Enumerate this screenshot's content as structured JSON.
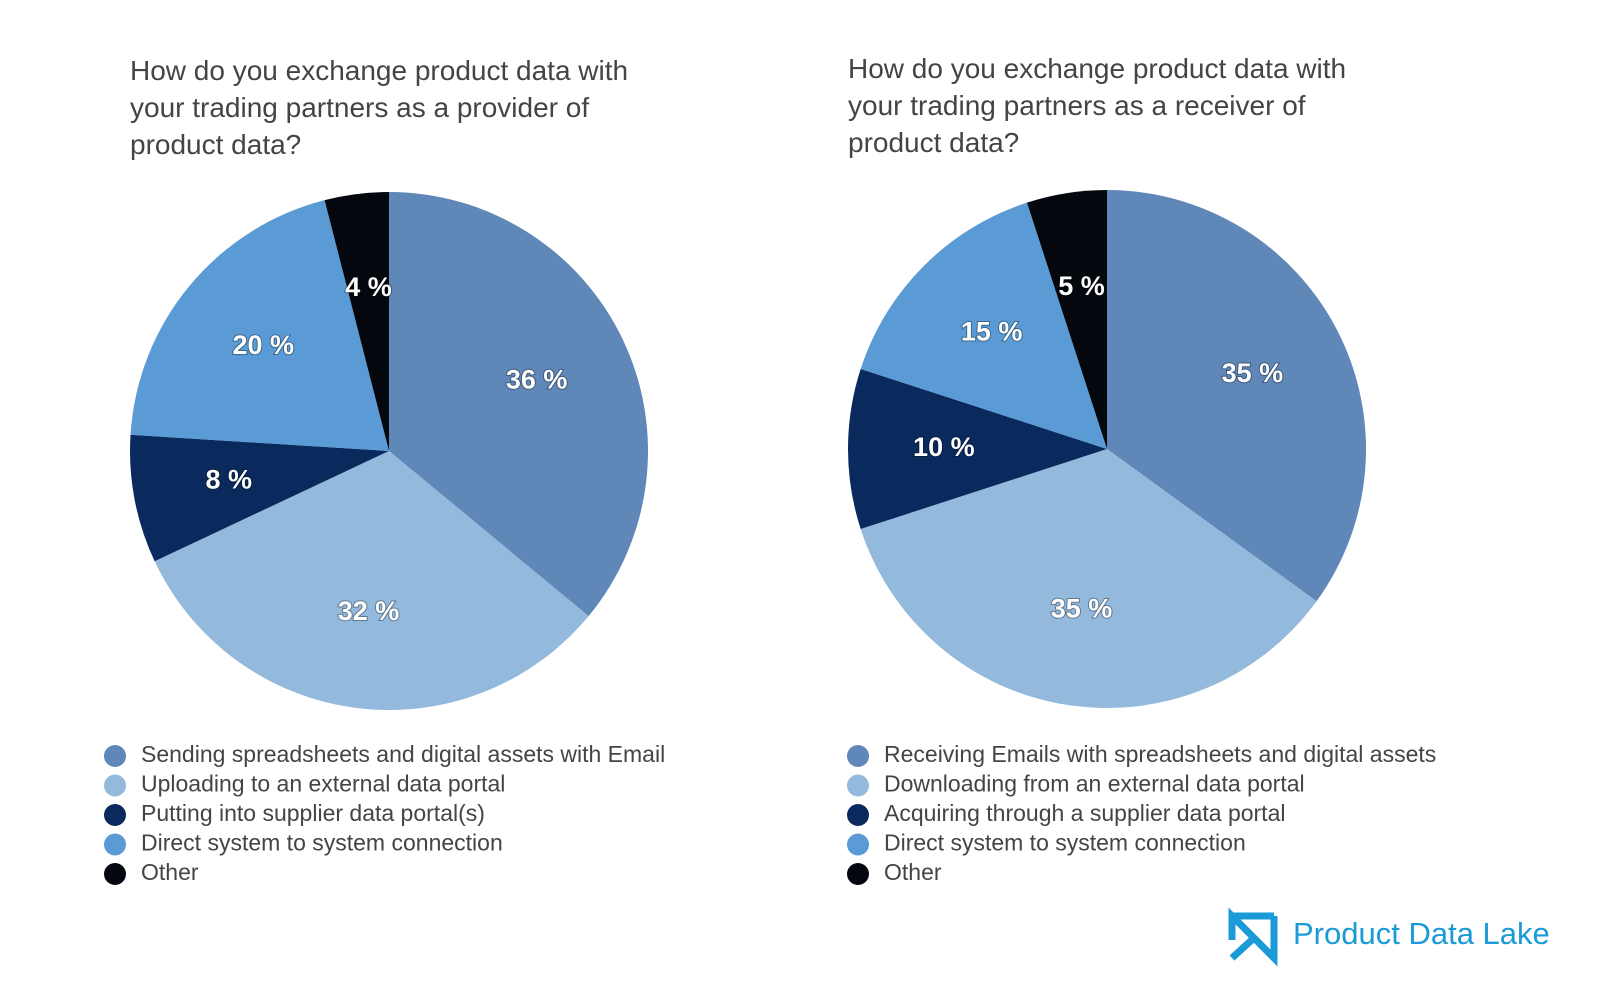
{
  "chart_data": [
    {
      "type": "pie",
      "title": "How do you exchange product data with your trading partners as a provider of product data?",
      "categories": [
        "Sending spreadsheets and digital assets with Email",
        "Uploading to an external data portal",
        "Putting into supplier data portal(s)",
        "Direct system to system connection",
        "Other"
      ],
      "values": [
        36,
        32,
        8,
        20,
        4
      ],
      "value_labels": [
        "36 %",
        "32 %",
        "8 %",
        "20 %",
        "4 %"
      ],
      "colors": [
        "#5f87b8",
        "#93b9dc",
        "#0a2a5e",
        "#5b9bd5",
        "#05070f"
      ]
    },
    {
      "type": "pie",
      "title": "How do you exchange product data with your trading partners as a receiver of product data?",
      "categories": [
        "Receiving Emails with spreadsheets and digital assets",
        "Downloading from an external data portal",
        "Acquiring through a supplier data portal",
        "Direct system to system connection",
        "Other"
      ],
      "values": [
        35,
        35,
        10,
        15,
        5
      ],
      "value_labels": [
        "35 %",
        "35 %",
        "10 %",
        "15 %",
        "5 %"
      ],
      "colors": [
        "#5f87b8",
        "#93b9dc",
        "#0a2a5e",
        "#5b9bd5",
        "#05070f"
      ]
    }
  ],
  "logo": {
    "text": "Product Data Lake"
  }
}
